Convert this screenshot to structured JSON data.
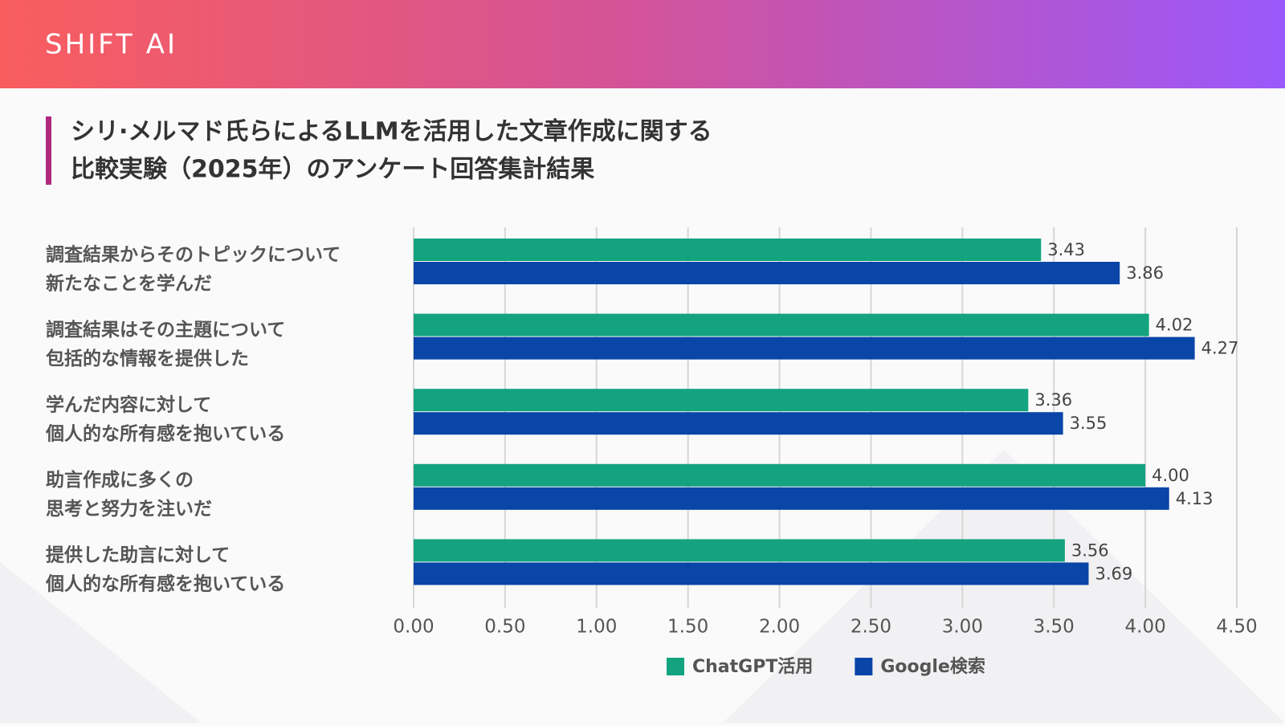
{
  "brand": "SHIFT AI",
  "chart_data": {
    "type": "hbar",
    "title": [
      "シリ·メルマド氏らによるLLMを活用した文章作成に関する",
      "比較実験（2025年）のアンケート回答集計結果"
    ],
    "categories": [
      [
        "調査結果からそのトピックについて",
        "新たなことを学んだ"
      ],
      [
        "調査結果はその主題について",
        "包括的な情報を提供した"
      ],
      [
        "学んだ内容に対して",
        "個人的な所有感を抱いている"
      ],
      [
        "助言作成に多くの",
        "思考と努力を注いだ"
      ],
      [
        "提供した助言に対して",
        "個人的な所有感を抱いている"
      ]
    ],
    "series": [
      {
        "name": "ChatGPT活用",
        "color": "#14a37f",
        "values": [
          3.43,
          4.02,
          3.36,
          4.0,
          3.56
        ],
        "value_labels": [
          "3.43",
          "4.02",
          "3.36",
          "4.00",
          "3.56"
        ]
      },
      {
        "name": "Google検索",
        "color": "#0a45a8",
        "values": [
          3.86,
          4.27,
          3.55,
          4.13,
          3.69
        ],
        "value_labels": [
          "3.86",
          "4.27",
          "3.55",
          "4.13",
          "3.69"
        ]
      }
    ],
    "xlim": [
      0,
      4.5
    ],
    "xticks": [
      {
        "value": 0,
        "label": "0.00"
      },
      {
        "value": 0.5,
        "label": "0.50"
      },
      {
        "value": 1,
        "label": "1.00"
      },
      {
        "value": 1.5,
        "label": "1.50"
      },
      {
        "value": 2,
        "label": "2.00"
      },
      {
        "value": 2.5,
        "label": "2.50"
      },
      {
        "value": 3,
        "label": "3.00"
      },
      {
        "value": 3.5,
        "label": "3.50"
      },
      {
        "value": 4,
        "label": "4.00"
      },
      {
        "value": 4.5,
        "label": "4.50"
      }
    ],
    "grid": true,
    "legend": "bottom"
  }
}
